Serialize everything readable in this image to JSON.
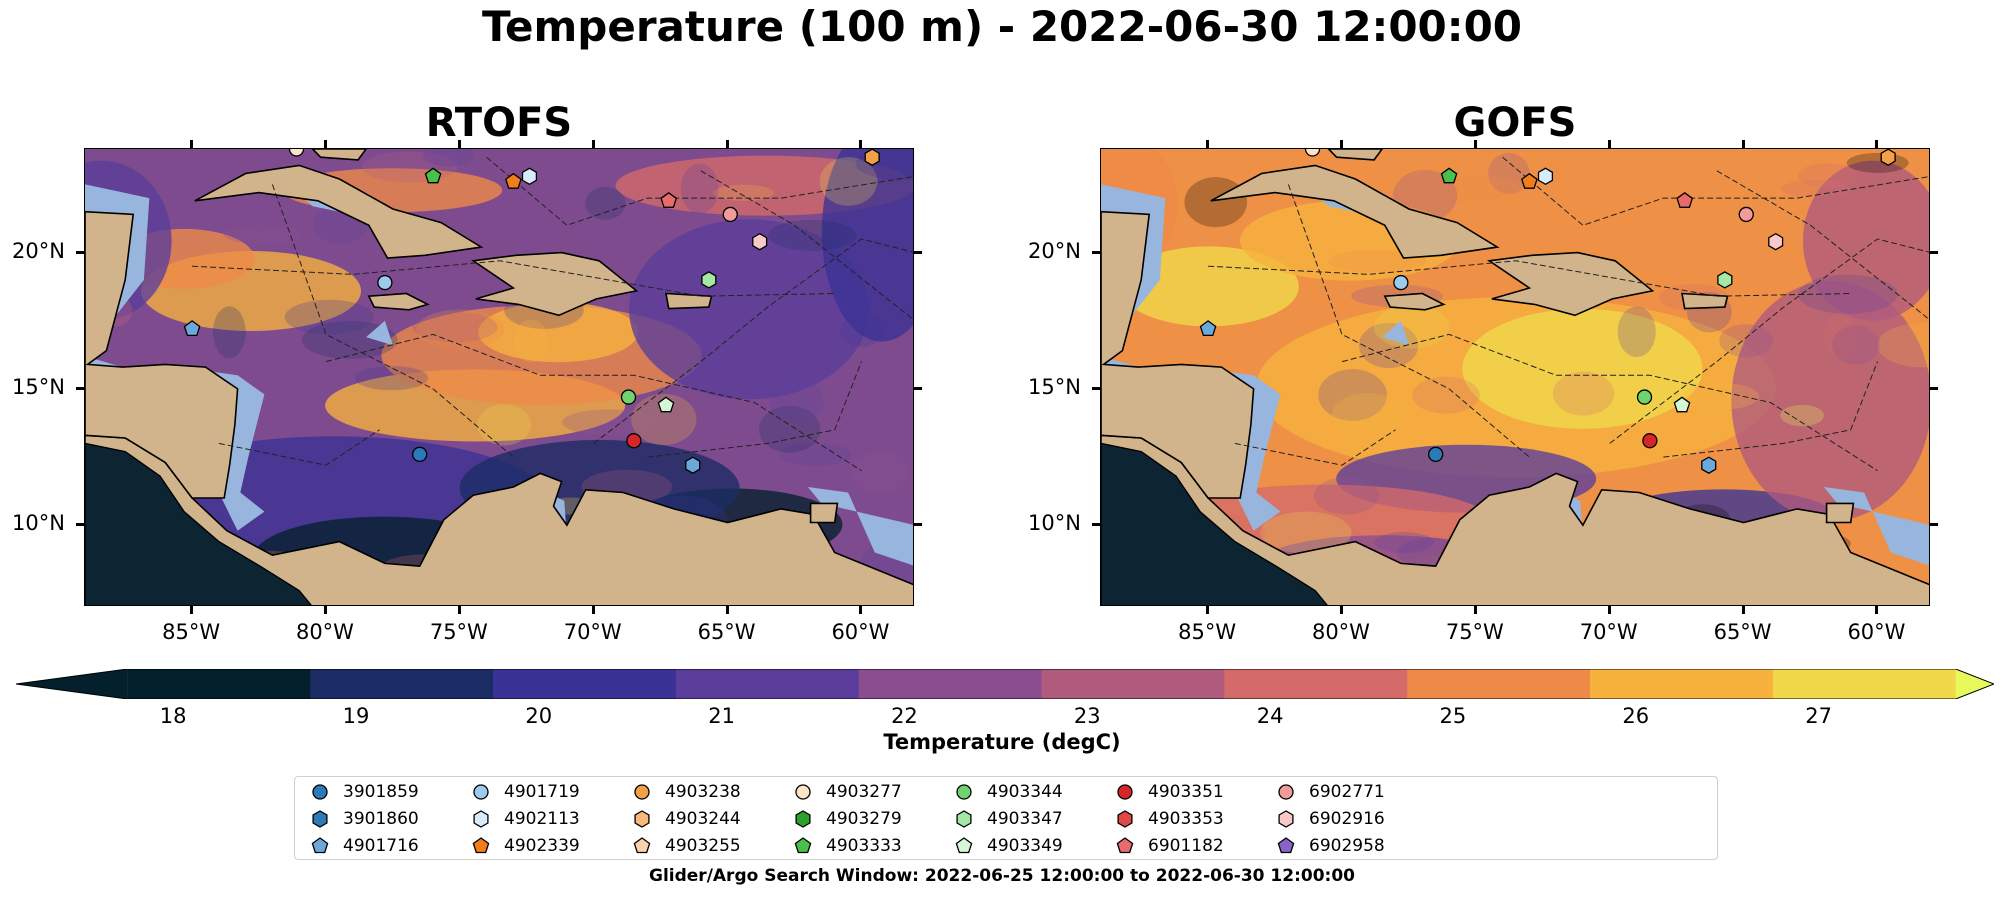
{
  "title": "Temperature (100 m) - 2022-06-30 12:00:00",
  "panels": [
    {
      "title": "RTOFS",
      "theme": "cool"
    },
    {
      "title": "GOFS",
      "theme": "warm"
    }
  ],
  "axes": {
    "lat_labels": [
      "20°N",
      "15°N",
      "10°N"
    ],
    "lon_labels": [
      "85°W",
      "80°W",
      "75°W",
      "70°W",
      "65°W",
      "60°W"
    ],
    "lon_range": [
      -89,
      -58
    ],
    "lat_range": [
      7,
      23.8
    ]
  },
  "colorbar": {
    "label": "Temperature (degC)",
    "ticks": [
      "18",
      "19",
      "20",
      "21",
      "22",
      "23",
      "24",
      "25",
      "26",
      "27"
    ],
    "range": [
      17.6,
      27.5
    ],
    "extend": "both"
  },
  "colors": {
    "land": "#d2b48c",
    "shelf": "#98b6dd",
    "colormap": [
      "#04202c",
      "#1b2b64",
      "#3a3295",
      "#5b3e9b",
      "#8a4e8f",
      "#b05a7e",
      "#d56a6a",
      "#ee8a48",
      "#f7b23e",
      "#f1d84a",
      "#e8fa5b"
    ]
  },
  "floats": [
    {
      "id": "3901859",
      "color": "#2b7bba",
      "marker": "circle"
    },
    {
      "id": "3901860",
      "color": "#2b7bba",
      "marker": "hexagon"
    },
    {
      "id": "4901716",
      "color": "#6ba8dc",
      "marker": "pentagon"
    },
    {
      "id": "4901719",
      "color": "#9ccbed",
      "marker": "circle"
    },
    {
      "id": "4902113",
      "color": "#d7ecfa",
      "marker": "hexagon"
    },
    {
      "id": "4902339",
      "color": "#f07f1b",
      "marker": "pentagon"
    },
    {
      "id": "4903238",
      "color": "#f4a04a",
      "marker": "circle"
    },
    {
      "id": "4903244",
      "color": "#f7b97c",
      "marker": "hexagon"
    },
    {
      "id": "4903255",
      "color": "#fad3ad",
      "marker": "pentagon"
    },
    {
      "id": "4903277",
      "color": "#fde4c8",
      "marker": "circle"
    },
    {
      "id": "4903279",
      "color": "#2ca02c",
      "marker": "hexagon"
    },
    {
      "id": "4903333",
      "color": "#4bbf4b",
      "marker": "pentagon"
    },
    {
      "id": "4903344",
      "color": "#6fd36f",
      "marker": "circle"
    },
    {
      "id": "4903347",
      "color": "#a3e9a3",
      "marker": "hexagon"
    },
    {
      "id": "4903349",
      "color": "#d6f7d6",
      "marker": "pentagon"
    },
    {
      "id": "4903351",
      "color": "#d62728",
      "marker": "circle"
    },
    {
      "id": "4903353",
      "color": "#e04848",
      "marker": "hexagon"
    },
    {
      "id": "6901182",
      "color": "#e86a6a",
      "marker": "pentagon"
    },
    {
      "id": "6902771",
      "color": "#f29b9b",
      "marker": "circle"
    },
    {
      "id": "6902916",
      "color": "#f9c9c9",
      "marker": "hexagon"
    },
    {
      "id": "6902958",
      "color": "#8a63c6",
      "marker": "pentagon"
    }
  ],
  "positions": [
    {
      "lon": -76.5,
      "lat": 12.6,
      "color": "#2b7bba",
      "marker": "circle"
    },
    {
      "lon": -85.0,
      "lat": 17.2,
      "color": "#6ba8dc",
      "marker": "pentagon"
    },
    {
      "lon": -77.8,
      "lat": 18.9,
      "color": "#9ccbed",
      "marker": "circle"
    },
    {
      "lon": -72.4,
      "lat": 22.8,
      "color": "#d7ecfa",
      "marker": "hexagon"
    },
    {
      "lon": -73.0,
      "lat": 22.6,
      "color": "#f07f1b",
      "marker": "pentagon"
    },
    {
      "lon": -76.0,
      "lat": 22.8,
      "color": "#4bbf4b",
      "marker": "pentagon"
    },
    {
      "lon": -65.7,
      "lat": 19.0,
      "color": "#a3e9a3",
      "marker": "hexagon"
    },
    {
      "lon": -68.7,
      "lat": 14.7,
      "color": "#6fd36f",
      "marker": "circle"
    },
    {
      "lon": -67.3,
      "lat": 14.4,
      "color": "#d6f7d6",
      "marker": "pentagon"
    },
    {
      "lon": -68.5,
      "lat": 13.1,
      "color": "#d62728",
      "marker": "circle"
    },
    {
      "lon": -67.2,
      "lat": 21.9,
      "color": "#e86a6a",
      "marker": "pentagon"
    },
    {
      "lon": -64.9,
      "lat": 21.4,
      "color": "#f29b9b",
      "marker": "circle"
    },
    {
      "lon": -63.8,
      "lat": 20.4,
      "color": "#f9c9c9",
      "marker": "hexagon"
    },
    {
      "lon": -66.3,
      "lat": 12.2,
      "color": "#6ba8dc",
      "marker": "hexagon"
    },
    {
      "lon": -59.6,
      "lat": 23.5,
      "color": "#f4a04a",
      "marker": "hexagon"
    },
    {
      "lon": -81.1,
      "lat": 23.8,
      "color": "#fde4c8",
      "marker": "circle"
    }
  ],
  "search_window": "Glider/Argo Search Window: 2022-06-25 12:00:00 to 2022-06-30 12:00:00"
}
